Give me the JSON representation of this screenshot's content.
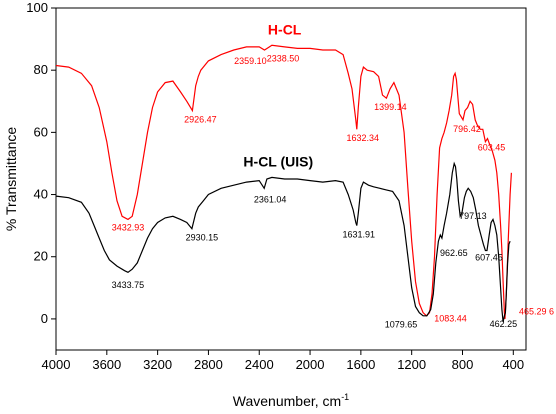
{
  "chart_data": {
    "type": "line",
    "title": "",
    "xlabel": "Wavenumber, cm",
    "xlabel_superscript": "-1",
    "ylabel": "% Transmittance",
    "xlim": [
      4000,
      300
    ],
    "ylim": [
      -10,
      100
    ],
    "x_reversed": true,
    "grid": false,
    "xticks": [
      4000,
      3600,
      3200,
      2800,
      2400,
      2000,
      1600,
      1200,
      800,
      400
    ],
    "yticks": [
      0,
      20,
      40,
      60,
      80,
      100
    ],
    "series": [
      {
        "name": "H-CL",
        "color": "#ff0000",
        "points": [
          [
            4000,
            81.5
          ],
          [
            3900,
            81
          ],
          [
            3800,
            79
          ],
          [
            3720,
            75
          ],
          [
            3660,
            68
          ],
          [
            3600,
            57
          ],
          [
            3560,
            47
          ],
          [
            3520,
            38
          ],
          [
            3480,
            33
          ],
          [
            3433,
            32
          ],
          [
            3400,
            33
          ],
          [
            3360,
            40
          ],
          [
            3320,
            50
          ],
          [
            3280,
            60
          ],
          [
            3240,
            68
          ],
          [
            3200,
            73
          ],
          [
            3140,
            76
          ],
          [
            3080,
            76.5
          ],
          [
            3020,
            73
          ],
          [
            2970,
            70
          ],
          [
            2926,
            67
          ],
          [
            2900,
            75
          ],
          [
            2880,
            78
          ],
          [
            2860,
            80
          ],
          [
            2800,
            83
          ],
          [
            2700,
            85
          ],
          [
            2600,
            86.5
          ],
          [
            2500,
            87.5
          ],
          [
            2400,
            87.5
          ],
          [
            2359,
            86.5
          ],
          [
            2338,
            87
          ],
          [
            2300,
            88
          ],
          [
            2200,
            87.5
          ],
          [
            2100,
            87
          ],
          [
            2000,
            87
          ],
          [
            1900,
            86.5
          ],
          [
            1800,
            86.5
          ],
          [
            1740,
            85
          ],
          [
            1700,
            79
          ],
          [
            1670,
            74
          ],
          [
            1640,
            64
          ],
          [
            1632,
            61
          ],
          [
            1620,
            68
          ],
          [
            1600,
            78
          ],
          [
            1580,
            81
          ],
          [
            1550,
            80
          ],
          [
            1500,
            79.5
          ],
          [
            1460,
            78
          ],
          [
            1430,
            72
          ],
          [
            1399,
            71
          ],
          [
            1370,
            74
          ],
          [
            1340,
            76
          ],
          [
            1300,
            72
          ],
          [
            1260,
            60
          ],
          [
            1230,
            42
          ],
          [
            1200,
            25
          ],
          [
            1170,
            12
          ],
          [
            1140,
            5
          ],
          [
            1110,
            2
          ],
          [
            1083,
            1
          ],
          [
            1060,
            2
          ],
          [
            1040,
            8
          ],
          [
            1020,
            20
          ],
          [
            1000,
            40
          ],
          [
            980,
            55
          ],
          [
            962,
            58
          ],
          [
            945,
            60
          ],
          [
            925,
            63
          ],
          [
            905,
            67
          ],
          [
            885,
            72
          ],
          [
            870,
            78
          ],
          [
            858,
            79
          ],
          [
            848,
            77
          ],
          [
            838,
            72
          ],
          [
            825,
            66
          ],
          [
            810,
            65
          ],
          [
            796,
            64
          ],
          [
            780,
            67
          ],
          [
            760,
            68
          ],
          [
            740,
            70
          ],
          [
            720,
            69
          ],
          [
            700,
            64
          ],
          [
            680,
            62
          ],
          [
            660,
            61
          ],
          [
            640,
            61
          ],
          [
            620,
            57
          ],
          [
            603,
            58
          ],
          [
            585,
            56
          ],
          [
            565,
            54
          ],
          [
            545,
            51
          ],
          [
            530,
            47
          ],
          [
            515,
            40
          ],
          [
            500,
            30
          ],
          [
            490,
            22
          ],
          [
            480,
            12
          ],
          [
            470,
            2
          ],
          [
            465,
            0
          ],
          [
            455,
            8
          ],
          [
            440,
            25
          ],
          [
            425,
            40
          ],
          [
            415,
            47
          ]
        ],
        "annotations": [
          {
            "x": 3432.93,
            "text": "3432.93"
          },
          {
            "x": 2926.47,
            "text": "2926.47"
          },
          {
            "x": 2359.1,
            "text": "2359.10"
          },
          {
            "x": 2338.5,
            "text": "2338.50"
          },
          {
            "x": 1632.34,
            "text": "1632.34"
          },
          {
            "x": 1399.14,
            "text": "1399.14"
          },
          {
            "x": 1083.44,
            "text": "1083.44"
          },
          {
            "x": 796.42,
            "text": "796.42"
          },
          {
            "x": 603.45,
            "text": "603.45"
          },
          {
            "x": 465.29,
            "text": "465.29 6"
          }
        ]
      },
      {
        "name": "H-CL (UIS)",
        "color": "#000000",
        "points": [
          [
            4000,
            39.5
          ],
          [
            3900,
            39
          ],
          [
            3800,
            37.5
          ],
          [
            3740,
            34
          ],
          [
            3700,
            30
          ],
          [
            3660,
            26
          ],
          [
            3620,
            22
          ],
          [
            3580,
            19
          ],
          [
            3520,
            17
          ],
          [
            3460,
            15.5
          ],
          [
            3433,
            15
          ],
          [
            3400,
            16
          ],
          [
            3360,
            18
          ],
          [
            3320,
            22
          ],
          [
            3280,
            26
          ],
          [
            3240,
            29
          ],
          [
            3200,
            31
          ],
          [
            3140,
            32.5
          ],
          [
            3080,
            33
          ],
          [
            3020,
            32
          ],
          [
            2970,
            31
          ],
          [
            2930,
            29
          ],
          [
            2900,
            34
          ],
          [
            2880,
            36
          ],
          [
            2840,
            38
          ],
          [
            2800,
            40
          ],
          [
            2700,
            42
          ],
          [
            2600,
            43
          ],
          [
            2500,
            44
          ],
          [
            2400,
            44.5
          ],
          [
            2361,
            42
          ],
          [
            2340,
            45
          ],
          [
            2300,
            45.5
          ],
          [
            2200,
            45
          ],
          [
            2100,
            45
          ],
          [
            2000,
            44.5
          ],
          [
            1900,
            44
          ],
          [
            1800,
            44.5
          ],
          [
            1740,
            44
          ],
          [
            1700,
            40
          ],
          [
            1660,
            35
          ],
          [
            1640,
            31
          ],
          [
            1632,
            30
          ],
          [
            1620,
            34
          ],
          [
            1600,
            42
          ],
          [
            1580,
            44
          ],
          [
            1540,
            43
          ],
          [
            1500,
            42.5
          ],
          [
            1450,
            42
          ],
          [
            1400,
            41.5
          ],
          [
            1350,
            41
          ],
          [
            1300,
            38
          ],
          [
            1260,
            30
          ],
          [
            1230,
            20
          ],
          [
            1200,
            10
          ],
          [
            1170,
            4
          ],
          [
            1140,
            2
          ],
          [
            1110,
            1
          ],
          [
            1080,
            1
          ],
          [
            1050,
            3
          ],
          [
            1030,
            8
          ],
          [
            1010,
            18
          ],
          [
            990,
            25
          ],
          [
            975,
            27
          ],
          [
            962,
            26
          ],
          [
            945,
            30
          ],
          [
            925,
            34
          ],
          [
            900,
            40
          ],
          [
            880,
            47
          ],
          [
            865,
            50
          ],
          [
            855,
            49
          ],
          [
            845,
            45
          ],
          [
            832,
            38
          ],
          [
            818,
            33
          ],
          [
            805,
            34
          ],
          [
            797,
            36
          ],
          [
            785,
            39
          ],
          [
            770,
            41
          ],
          [
            755,
            42
          ],
          [
            735,
            41
          ],
          [
            715,
            39
          ],
          [
            695,
            35
          ],
          [
            675,
            30
          ],
          [
            655,
            27
          ],
          [
            635,
            24
          ],
          [
            620,
            22
          ],
          [
            607,
            22
          ],
          [
            590,
            27
          ],
          [
            575,
            31
          ],
          [
            560,
            32
          ],
          [
            545,
            30
          ],
          [
            530,
            27
          ],
          [
            515,
            20
          ],
          [
            500,
            10
          ],
          [
            490,
            3
          ],
          [
            480,
            -1
          ],
          [
            470,
            1
          ],
          [
            462,
            2
          ],
          [
            455,
            8
          ],
          [
            445,
            18
          ],
          [
            435,
            24
          ],
          [
            425,
            25
          ]
        ],
        "annotations": [
          {
            "x": 3433.75,
            "text": "3433.75"
          },
          {
            "x": 2930.15,
            "text": "2930.15"
          },
          {
            "x": 2361.04,
            "text": "2361.04"
          },
          {
            "x": 1631.91,
            "text": "1631.91"
          },
          {
            "x": 1079.65,
            "text": "1079.65"
          },
          {
            "x": 962.65,
            "text": "962.65"
          },
          {
            "x": 797.13,
            "text": "797.13"
          },
          {
            "x": 607.45,
            "text": "607.45"
          },
          {
            "x": 462.25,
            "text": "462.25"
          }
        ]
      }
    ]
  }
}
